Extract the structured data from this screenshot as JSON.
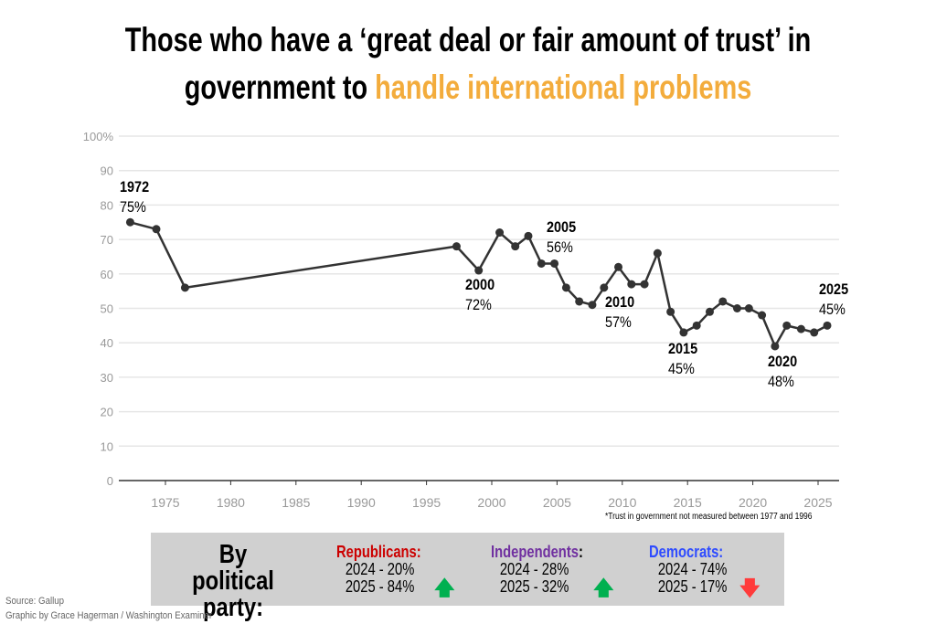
{
  "title": {
    "line1": "Those who have a ‘great deal or fair amount of trust’ in",
    "line2_prefix": "government to ",
    "line2_highlight": "handle international problems",
    "highlight_color": "#f3ac3c"
  },
  "chart_data": {
    "type": "line",
    "xlim": [
      1971,
      2026.5
    ],
    "ylim": [
      0,
      100
    ],
    "x_ticks": [
      1975,
      1980,
      1985,
      1990,
      1995,
      2000,
      2005,
      2010,
      2015,
      2020,
      2025
    ],
    "y_ticks": [
      0,
      10,
      20,
      30,
      40,
      50,
      60,
      70,
      80,
      90,
      100
    ],
    "y_tick_labels": [
      "0",
      "10",
      "20",
      "30",
      "40",
      "50",
      "60",
      "70",
      "80",
      "90",
      "100%"
    ],
    "grid": "horizontal",
    "line_color": "#333333",
    "points": [
      {
        "x": 1972.3,
        "y": 75
      },
      {
        "x": 1974.3,
        "y": 73
      },
      {
        "x": 1976.5,
        "y": 56
      },
      {
        "x": 1997.3,
        "y": 68
      },
      {
        "x": 1999.0,
        "y": 61
      },
      {
        "x": 2000.6,
        "y": 72
      },
      {
        "x": 2001.8,
        "y": 68
      },
      {
        "x": 2002.8,
        "y": 71
      },
      {
        "x": 2003.8,
        "y": 63
      },
      {
        "x": 2004.8,
        "y": 63
      },
      {
        "x": 2005.7,
        "y": 56
      },
      {
        "x": 2006.7,
        "y": 52
      },
      {
        "x": 2007.7,
        "y": 51
      },
      {
        "x": 2008.6,
        "y": 56
      },
      {
        "x": 2009.7,
        "y": 62
      },
      {
        "x": 2010.7,
        "y": 57
      },
      {
        "x": 2011.7,
        "y": 57
      },
      {
        "x": 2012.7,
        "y": 66
      },
      {
        "x": 2013.7,
        "y": 49
      },
      {
        "x": 2014.7,
        "y": 43
      },
      {
        "x": 2015.7,
        "y": 45
      },
      {
        "x": 2016.7,
        "y": 49
      },
      {
        "x": 2017.7,
        "y": 52
      },
      {
        "x": 2018.8,
        "y": 50
      },
      {
        "x": 2019.7,
        "y": 50
      },
      {
        "x": 2020.7,
        "y": 48
      },
      {
        "x": 2021.7,
        "y": 39
      },
      {
        "x": 2022.6,
        "y": 45
      },
      {
        "x": 2023.7,
        "y": 44
      },
      {
        "x": 2024.7,
        "y": 43
      },
      {
        "x": 2025.7,
        "y": 45
      }
    ],
    "annotations": [
      {
        "year": "1972",
        "value": "75%"
      },
      {
        "year": "2000",
        "value": "72%"
      },
      {
        "year": "2005",
        "value": "56%"
      },
      {
        "year": "2010",
        "value": "57%"
      },
      {
        "year": "2015",
        "value": "45%"
      },
      {
        "year": "2020",
        "value": "48%"
      },
      {
        "year": "2025",
        "value": "45%"
      }
    ],
    "note": "*Trust in government not measured between 1977 and 1996"
  },
  "party": {
    "title_line1": "By political",
    "title_line2": "party:",
    "groups": [
      {
        "name": "Republicans:",
        "color": "#cc0000",
        "row1": "2024 - 20%",
        "row2": "2025 - 84%",
        "trend": "up",
        "arrow": "🡅",
        "arrow_color": "#00b050"
      },
      {
        "name": "Independents",
        "name_suffix": ":",
        "color": "#7030a0",
        "row1": "2024 - 28%",
        "row2": "2025 - 32%",
        "trend": "up",
        "arrow": "🡅",
        "arrow_color": "#00b050"
      },
      {
        "name": "Democrats:",
        "color": "#2e4bff",
        "row1": "2024 - 74%",
        "row2": "2025 - 17%",
        "trend": "down",
        "arrow": "🡇",
        "arrow_color": "#ff3b3b"
      }
    ]
  },
  "footer": {
    "source": "Source: Gallup",
    "credit": "Graphic by Grace Hagerman / Washington Examiner"
  }
}
